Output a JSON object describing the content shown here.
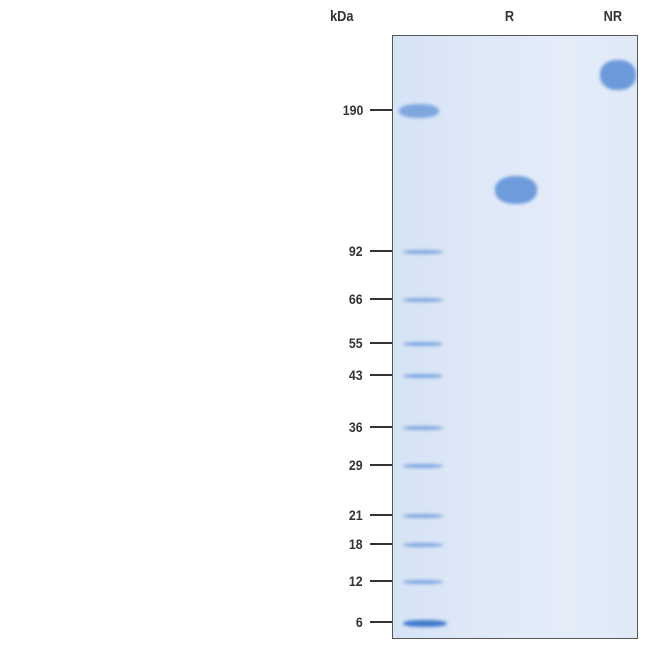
{
  "axis_label": "kDa",
  "lanes": [
    {
      "label": "R"
    },
    {
      "label": "NR"
    }
  ],
  "markers": [
    {
      "kda": "190"
    },
    {
      "kda": "92"
    },
    {
      "kda": "66"
    },
    {
      "kda": "55"
    },
    {
      "kda": "43"
    },
    {
      "kda": "36"
    },
    {
      "kda": "29"
    },
    {
      "kda": "21"
    },
    {
      "kda": "18"
    },
    {
      "kda": "12"
    },
    {
      "kda": "6"
    }
  ],
  "colors": {
    "gel": "#dde8f7",
    "band": "#5b8fd6",
    "text": "#333333"
  }
}
